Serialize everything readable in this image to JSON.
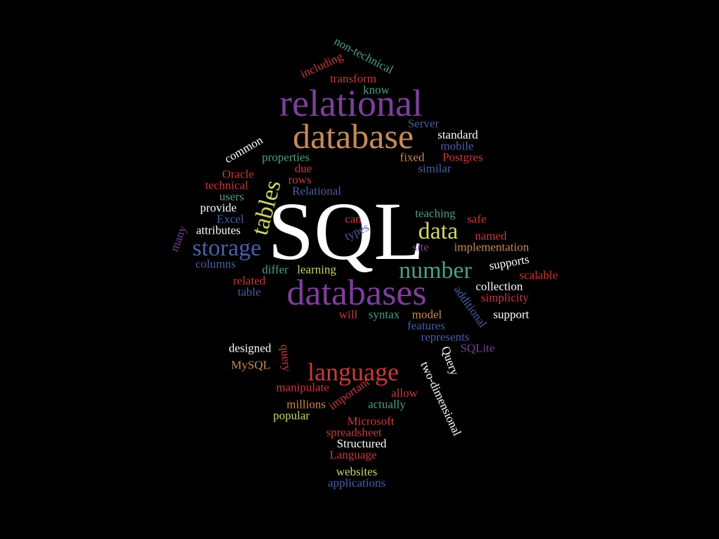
{
  "colors": {
    "background": "#000000",
    "purple": "#7d3f9a",
    "tan": "#c88a5a",
    "white": "#ffffff",
    "teal": "#4f9e86",
    "blue": "#4b5fa8",
    "red": "#c93a3a",
    "yellow": "#cfd56a"
  },
  "words": [
    {
      "text": "SQL",
      "color": "white"
    },
    {
      "text": "relational",
      "color": "purple"
    },
    {
      "text": "database",
      "color": "tan"
    },
    {
      "text": "databases",
      "color": "purple"
    },
    {
      "text": "language",
      "color": "red"
    },
    {
      "text": "number",
      "color": "teal"
    },
    {
      "text": "storage",
      "color": "blue"
    },
    {
      "text": "data",
      "color": "yellow"
    },
    {
      "text": "tables",
      "color": "yellow"
    },
    {
      "text": "non-technical",
      "color": "teal"
    },
    {
      "text": "including",
      "color": "red"
    },
    {
      "text": "transform",
      "color": "red"
    },
    {
      "text": "know",
      "color": "teal"
    },
    {
      "text": "Server",
      "color": "blue"
    },
    {
      "text": "standard",
      "color": "white"
    },
    {
      "text": "mobile",
      "color": "blue"
    },
    {
      "text": "common",
      "color": "white"
    },
    {
      "text": "properties",
      "color": "teal"
    },
    {
      "text": "fixed",
      "color": "tan"
    },
    {
      "text": "Postgres",
      "color": "red"
    },
    {
      "text": "similar",
      "color": "blue"
    },
    {
      "text": "Oracle",
      "color": "red"
    },
    {
      "text": "due",
      "color": "red"
    },
    {
      "text": "technical",
      "color": "red"
    },
    {
      "text": "rows",
      "color": "red"
    },
    {
      "text": "Relational",
      "color": "blue"
    },
    {
      "text": "users",
      "color": "teal"
    },
    {
      "text": "provide",
      "color": "white"
    },
    {
      "text": "Excel",
      "color": "blue"
    },
    {
      "text": "attributes",
      "color": "white"
    },
    {
      "text": "many",
      "color": "purple"
    },
    {
      "text": "can",
      "color": "red"
    },
    {
      "text": "types",
      "color": "blue"
    },
    {
      "text": "teaching",
      "color": "teal"
    },
    {
      "text": "safe",
      "color": "red"
    },
    {
      "text": "named",
      "color": "red"
    },
    {
      "text": "site",
      "color": "purple"
    },
    {
      "text": "implementation",
      "color": "tan"
    },
    {
      "text": "columns",
      "color": "blue"
    },
    {
      "text": "differ",
      "color": "teal"
    },
    {
      "text": "learning",
      "color": "yellow"
    },
    {
      "text": "supports",
      "color": "white"
    },
    {
      "text": "scalable",
      "color": "red"
    },
    {
      "text": "related",
      "color": "red"
    },
    {
      "text": "table",
      "color": "blue"
    },
    {
      "text": "collection",
      "color": "white"
    },
    {
      "text": "additional",
      "color": "blue"
    },
    {
      "text": "simplicity",
      "color": "red"
    },
    {
      "text": "will",
      "color": "red"
    },
    {
      "text": "syntax",
      "color": "teal"
    },
    {
      "text": "model",
      "color": "tan"
    },
    {
      "text": "support",
      "color": "white"
    },
    {
      "text": "features",
      "color": "blue"
    },
    {
      "text": "represents",
      "color": "blue"
    },
    {
      "text": "SQLite",
      "color": "purple"
    },
    {
      "text": "designed",
      "color": "white"
    },
    {
      "text": "query",
      "color": "red"
    },
    {
      "text": "Query",
      "color": "white"
    },
    {
      "text": "MySQL",
      "color": "tan"
    },
    {
      "text": "two-dimensional",
      "color": "white"
    },
    {
      "text": "manipulate",
      "color": "red"
    },
    {
      "text": "important",
      "color": "red"
    },
    {
      "text": "allow",
      "color": "red"
    },
    {
      "text": "millions",
      "color": "tan"
    },
    {
      "text": "actually",
      "color": "teal"
    },
    {
      "text": "popular",
      "color": "yellow"
    },
    {
      "text": "Microsoft",
      "color": "red"
    },
    {
      "text": "spreadsheet",
      "color": "red"
    },
    {
      "text": "Structured",
      "color": "white"
    },
    {
      "text": "Language",
      "color": "red"
    },
    {
      "text": "websites",
      "color": "yellow"
    },
    {
      "text": "applications",
      "color": "blue"
    }
  ]
}
